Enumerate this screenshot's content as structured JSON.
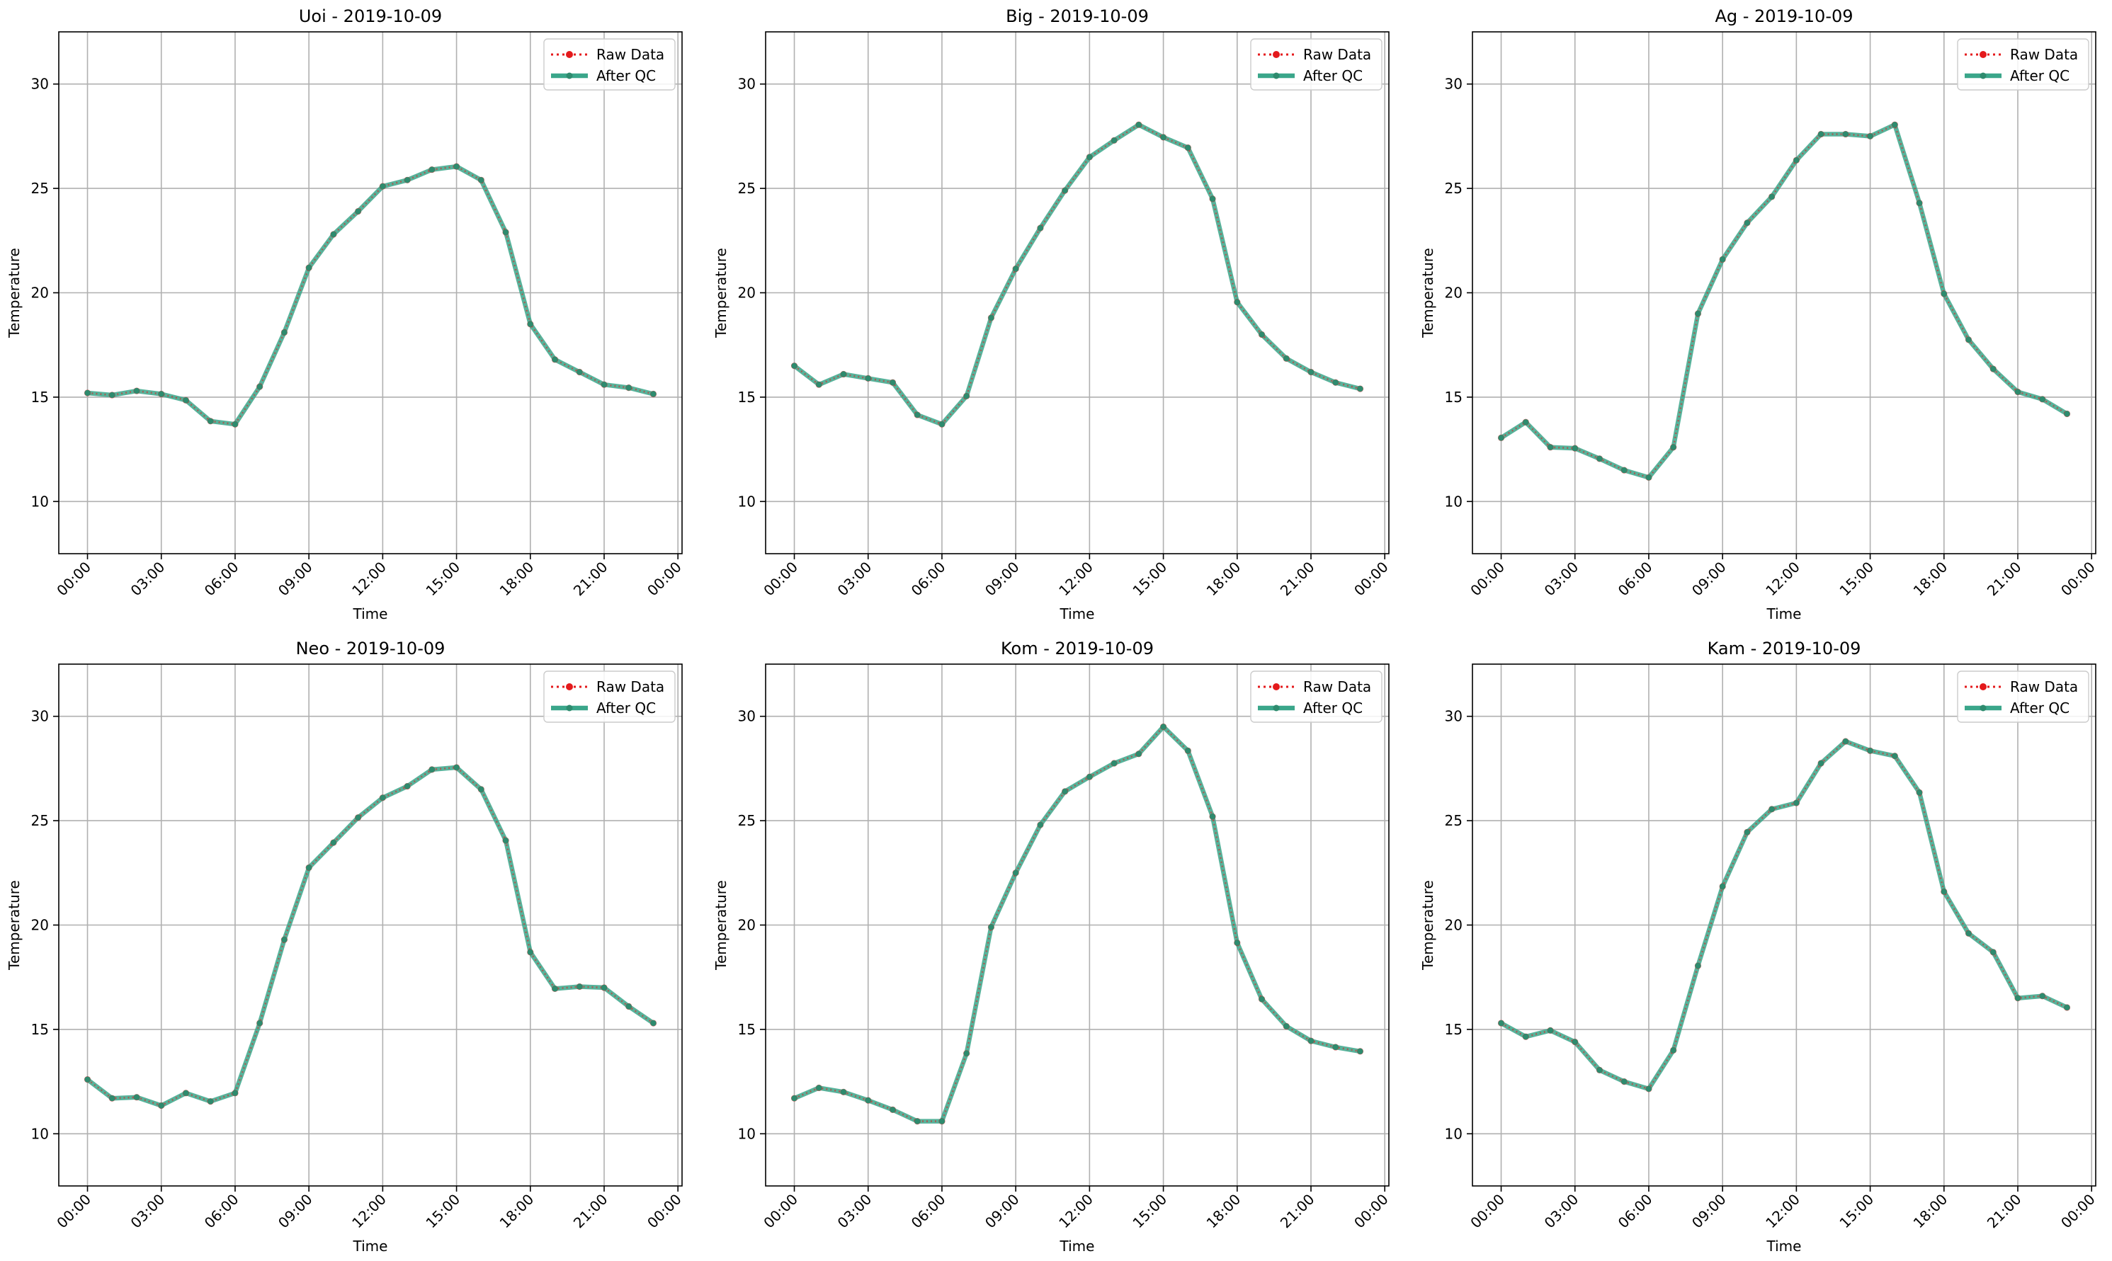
{
  "legend": {
    "raw_label": "Raw Data",
    "qc_label": "After QC"
  },
  "colors": {
    "raw": "#e41a1c",
    "qc": "#2e8b6e",
    "qc_line": "#3aa68a",
    "grid": "#b0b0b0"
  },
  "chart_data": [
    {
      "type": "line",
      "title": "Uoi - 2019-10-09",
      "xlabel": "Time",
      "ylabel": "Temperature",
      "xticks": [
        "00:00",
        "03:00",
        "06:00",
        "09:00",
        "12:00",
        "15:00",
        "18:00",
        "21:00",
        "00:00"
      ],
      "yticks": [
        10,
        15,
        20,
        25,
        30
      ],
      "ylim": [
        7.5,
        32.5
      ],
      "grid": true,
      "legend_position": "top-right",
      "x": [
        "00:00",
        "01:00",
        "02:00",
        "03:00",
        "04:00",
        "05:00",
        "06:00",
        "07:00",
        "08:00",
        "09:00",
        "10:00",
        "11:00",
        "12:00",
        "13:00",
        "14:00",
        "15:00",
        "16:00",
        "17:00",
        "18:00",
        "19:00",
        "20:00",
        "21:00",
        "22:00",
        "23:00"
      ],
      "series": [
        {
          "name": "Raw Data",
          "values": [
            15.2,
            15.1,
            15.3,
            15.15,
            14.85,
            13.85,
            13.7,
            15.5,
            18.1,
            21.2,
            22.8,
            23.9,
            25.1,
            25.4,
            25.9,
            26.05,
            25.4,
            22.9,
            18.5,
            16.8,
            16.2,
            15.6,
            15.45,
            15.15
          ]
        },
        {
          "name": "After QC",
          "values": [
            15.2,
            15.1,
            15.3,
            15.15,
            14.85,
            13.85,
            13.7,
            15.5,
            18.1,
            21.2,
            22.8,
            23.9,
            25.1,
            25.4,
            25.9,
            26.05,
            25.4,
            22.9,
            18.5,
            16.8,
            16.2,
            15.6,
            15.45,
            15.15
          ]
        }
      ]
    },
    {
      "type": "line",
      "title": "Big - 2019-10-09",
      "xlabel": "Time",
      "ylabel": "Temperature",
      "xticks": [
        "00:00",
        "03:00",
        "06:00",
        "09:00",
        "12:00",
        "15:00",
        "18:00",
        "21:00",
        "00:00"
      ],
      "yticks": [
        10,
        15,
        20,
        25,
        30
      ],
      "ylim": [
        7.5,
        32.5
      ],
      "grid": true,
      "legend_position": "top-right",
      "x": [
        "00:00",
        "01:00",
        "02:00",
        "03:00",
        "04:00",
        "05:00",
        "06:00",
        "07:00",
        "08:00",
        "09:00",
        "10:00",
        "11:00",
        "12:00",
        "13:00",
        "14:00",
        "15:00",
        "16:00",
        "17:00",
        "18:00",
        "19:00",
        "20:00",
        "21:00",
        "22:00",
        "23:00"
      ],
      "series": [
        {
          "name": "Raw Data",
          "values": [
            16.5,
            15.6,
            16.1,
            15.9,
            15.7,
            14.15,
            13.7,
            15.05,
            18.8,
            21.15,
            23.1,
            24.9,
            26.5,
            27.3,
            28.05,
            27.45,
            26.95,
            24.5,
            19.55,
            18.0,
            16.85,
            16.2,
            15.7,
            15.4
          ]
        },
        {
          "name": "After QC",
          "values": [
            16.5,
            15.6,
            16.1,
            15.9,
            15.7,
            14.15,
            13.7,
            15.05,
            18.8,
            21.15,
            23.1,
            24.9,
            26.5,
            27.3,
            28.05,
            27.45,
            26.95,
            24.5,
            19.55,
            18.0,
            16.85,
            16.2,
            15.7,
            15.4
          ]
        }
      ]
    },
    {
      "type": "line",
      "title": "Ag - 2019-10-09",
      "xlabel": "Time",
      "ylabel": "Temperature",
      "xticks": [
        "00:00",
        "03:00",
        "06:00",
        "09:00",
        "12:00",
        "15:00",
        "18:00",
        "21:00",
        "00:00"
      ],
      "yticks": [
        10,
        15,
        20,
        25,
        30
      ],
      "ylim": [
        7.5,
        32.5
      ],
      "grid": true,
      "legend_position": "top-right",
      "x": [
        "00:00",
        "01:00",
        "02:00",
        "03:00",
        "04:00",
        "05:00",
        "06:00",
        "07:00",
        "08:00",
        "09:00",
        "10:00",
        "11:00",
        "12:00",
        "13:00",
        "14:00",
        "15:00",
        "16:00",
        "17:00",
        "18:00",
        "19:00",
        "20:00",
        "21:00",
        "22:00",
        "23:00"
      ],
      "series": [
        {
          "name": "Raw Data",
          "values": [
            13.05,
            13.8,
            12.6,
            12.55,
            12.05,
            11.5,
            11.15,
            12.6,
            19.0,
            21.6,
            23.35,
            24.6,
            26.35,
            27.6,
            27.6,
            27.5,
            28.05,
            24.3,
            19.95,
            17.75,
            16.35,
            15.25,
            14.9,
            14.2
          ]
        },
        {
          "name": "After QC",
          "values": [
            13.05,
            13.8,
            12.6,
            12.55,
            12.05,
            11.5,
            11.15,
            12.6,
            19.0,
            21.6,
            23.35,
            24.6,
            26.35,
            27.6,
            27.6,
            27.5,
            28.05,
            24.3,
            19.95,
            17.75,
            16.35,
            15.25,
            14.9,
            14.2
          ]
        }
      ]
    },
    {
      "type": "line",
      "title": "Neo - 2019-10-09",
      "xlabel": "Time",
      "ylabel": "Temperature",
      "xticks": [
        "00:00",
        "03:00",
        "06:00",
        "09:00",
        "12:00",
        "15:00",
        "18:00",
        "21:00",
        "00:00"
      ],
      "yticks": [
        10,
        15,
        20,
        25,
        30
      ],
      "ylim": [
        7.5,
        32.5
      ],
      "grid": true,
      "legend_position": "top-right",
      "x": [
        "00:00",
        "01:00",
        "02:00",
        "03:00",
        "04:00",
        "05:00",
        "06:00",
        "07:00",
        "08:00",
        "09:00",
        "10:00",
        "11:00",
        "12:00",
        "13:00",
        "14:00",
        "15:00",
        "16:00",
        "17:00",
        "18:00",
        "19:00",
        "20:00",
        "21:00",
        "22:00",
        "23:00"
      ],
      "series": [
        {
          "name": "Raw Data",
          "values": [
            12.6,
            11.7,
            11.75,
            11.35,
            11.95,
            11.55,
            11.95,
            15.3,
            19.3,
            22.75,
            23.95,
            25.15,
            26.1,
            26.65,
            27.45,
            27.55,
            26.5,
            24.05,
            18.7,
            16.95,
            17.05,
            17.0,
            16.1,
            15.3
          ]
        },
        {
          "name": "After QC",
          "values": [
            12.6,
            11.7,
            11.75,
            11.35,
            11.95,
            11.55,
            11.95,
            15.3,
            19.3,
            22.75,
            23.95,
            25.15,
            26.1,
            26.65,
            27.45,
            27.55,
            26.5,
            24.05,
            18.7,
            16.95,
            17.05,
            17.0,
            16.1,
            15.3
          ]
        }
      ]
    },
    {
      "type": "line",
      "title": "Kom - 2019-10-09",
      "xlabel": "Time",
      "ylabel": "Temperature",
      "xticks": [
        "00:00",
        "03:00",
        "06:00",
        "09:00",
        "12:00",
        "15:00",
        "18:00",
        "21:00",
        "00:00"
      ],
      "yticks": [
        10,
        15,
        20,
        25,
        30
      ],
      "ylim": [
        7.5,
        32.5
      ],
      "grid": true,
      "legend_position": "top-right",
      "x": [
        "00:00",
        "01:00",
        "02:00",
        "03:00",
        "04:00",
        "05:00",
        "06:00",
        "07:00",
        "08:00",
        "09:00",
        "10:00",
        "11:00",
        "12:00",
        "13:00",
        "14:00",
        "15:00",
        "16:00",
        "17:00",
        "18:00",
        "19:00",
        "20:00",
        "21:00",
        "22:00",
        "23:00"
      ],
      "series": [
        {
          "name": "Raw Data",
          "values": [
            11.7,
            12.2,
            12.0,
            11.6,
            11.15,
            10.6,
            10.6,
            13.85,
            19.9,
            22.5,
            24.8,
            26.4,
            27.1,
            27.75,
            28.2,
            29.5,
            28.35,
            25.2,
            19.15,
            16.45,
            15.15,
            14.45,
            14.15,
            13.95
          ]
        },
        {
          "name": "After QC",
          "values": [
            11.7,
            12.2,
            12.0,
            11.6,
            11.15,
            10.6,
            10.6,
            13.85,
            19.9,
            22.5,
            24.8,
            26.4,
            27.1,
            27.75,
            28.2,
            29.5,
            28.35,
            25.2,
            19.15,
            16.45,
            15.15,
            14.45,
            14.15,
            13.95
          ]
        }
      ]
    },
    {
      "type": "line",
      "title": "Kam - 2019-10-09",
      "xlabel": "Time",
      "ylabel": "Temperature",
      "xticks": [
        "00:00",
        "03:00",
        "06:00",
        "09:00",
        "12:00",
        "15:00",
        "18:00",
        "21:00",
        "00:00"
      ],
      "yticks": [
        10,
        15,
        20,
        25,
        30
      ],
      "ylim": [
        7.5,
        32.5
      ],
      "grid": true,
      "legend_position": "top-right",
      "x": [
        "00:00",
        "01:00",
        "02:00",
        "03:00",
        "04:00",
        "05:00",
        "06:00",
        "07:00",
        "08:00",
        "09:00",
        "10:00",
        "11:00",
        "12:00",
        "13:00",
        "14:00",
        "15:00",
        "16:00",
        "17:00",
        "18:00",
        "19:00",
        "20:00",
        "21:00",
        "22:00",
        "23:00"
      ],
      "series": [
        {
          "name": "Raw Data",
          "values": [
            15.3,
            14.65,
            14.95,
            14.4,
            13.05,
            12.5,
            12.15,
            14.0,
            18.05,
            21.85,
            24.45,
            25.55,
            25.85,
            27.75,
            28.8,
            28.35,
            28.1,
            26.35,
            21.6,
            19.6,
            18.7,
            16.5,
            16.6,
            16.05
          ]
        },
        {
          "name": "After QC",
          "values": [
            15.3,
            14.65,
            14.95,
            14.4,
            13.05,
            12.5,
            12.15,
            14.0,
            18.05,
            21.85,
            24.45,
            25.55,
            25.85,
            27.75,
            28.8,
            28.35,
            28.1,
            26.35,
            21.6,
            19.6,
            18.7,
            16.5,
            16.6,
            16.05
          ]
        }
      ]
    }
  ]
}
